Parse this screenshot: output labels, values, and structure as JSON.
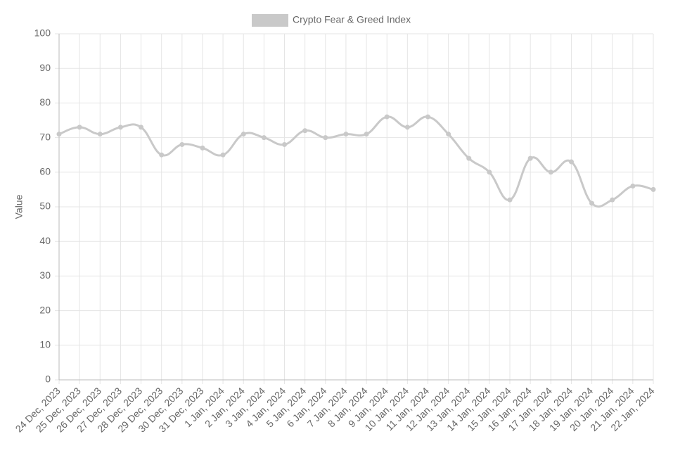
{
  "chart_data": {
    "type": "line",
    "categories": [
      "24 Dec, 2023",
      "25 Dec, 2023",
      "26 Dec, 2023",
      "27 Dec, 2023",
      "28 Dec, 2023",
      "29 Dec, 2023",
      "30 Dec, 2023",
      "31 Dec, 2023",
      "1 Jan, 2024",
      "2 Jan, 2024",
      "3 Jan, 2024",
      "4 Jan, 2024",
      "5 Jan, 2024",
      "6 Jan, 2024",
      "7 Jan, 2024",
      "8 Jan, 2024",
      "9 Jan, 2024",
      "10 Jan, 2024",
      "11 Jan, 2024",
      "12 Jan, 2024",
      "13 Jan, 2024",
      "14 Jan, 2024",
      "15 Jan, 2024",
      "16 Jan, 2024",
      "17 Jan, 2024",
      "18 Jan, 2024",
      "19 Jan, 2024",
      "20 Jan, 2024",
      "21 Jan, 2024",
      "22 Jan, 2024"
    ],
    "series": [
      {
        "name": "Crypto Fear & Greed Index",
        "color": "#c9c9c9",
        "values": [
          71,
          73,
          71,
          73,
          73,
          65,
          68,
          67,
          65,
          71,
          70,
          68,
          72,
          70,
          71,
          71,
          76,
          73,
          76,
          71,
          64,
          60,
          52,
          64,
          60,
          63,
          51,
          52,
          56,
          55
        ]
      }
    ],
    "y_label": "Value",
    "ylim": [
      0,
      100
    ],
    "yticks": [
      0,
      10,
      20,
      30,
      40,
      50,
      60,
      70,
      80,
      90,
      100
    ],
    "grid": true,
    "legend": "top"
  }
}
